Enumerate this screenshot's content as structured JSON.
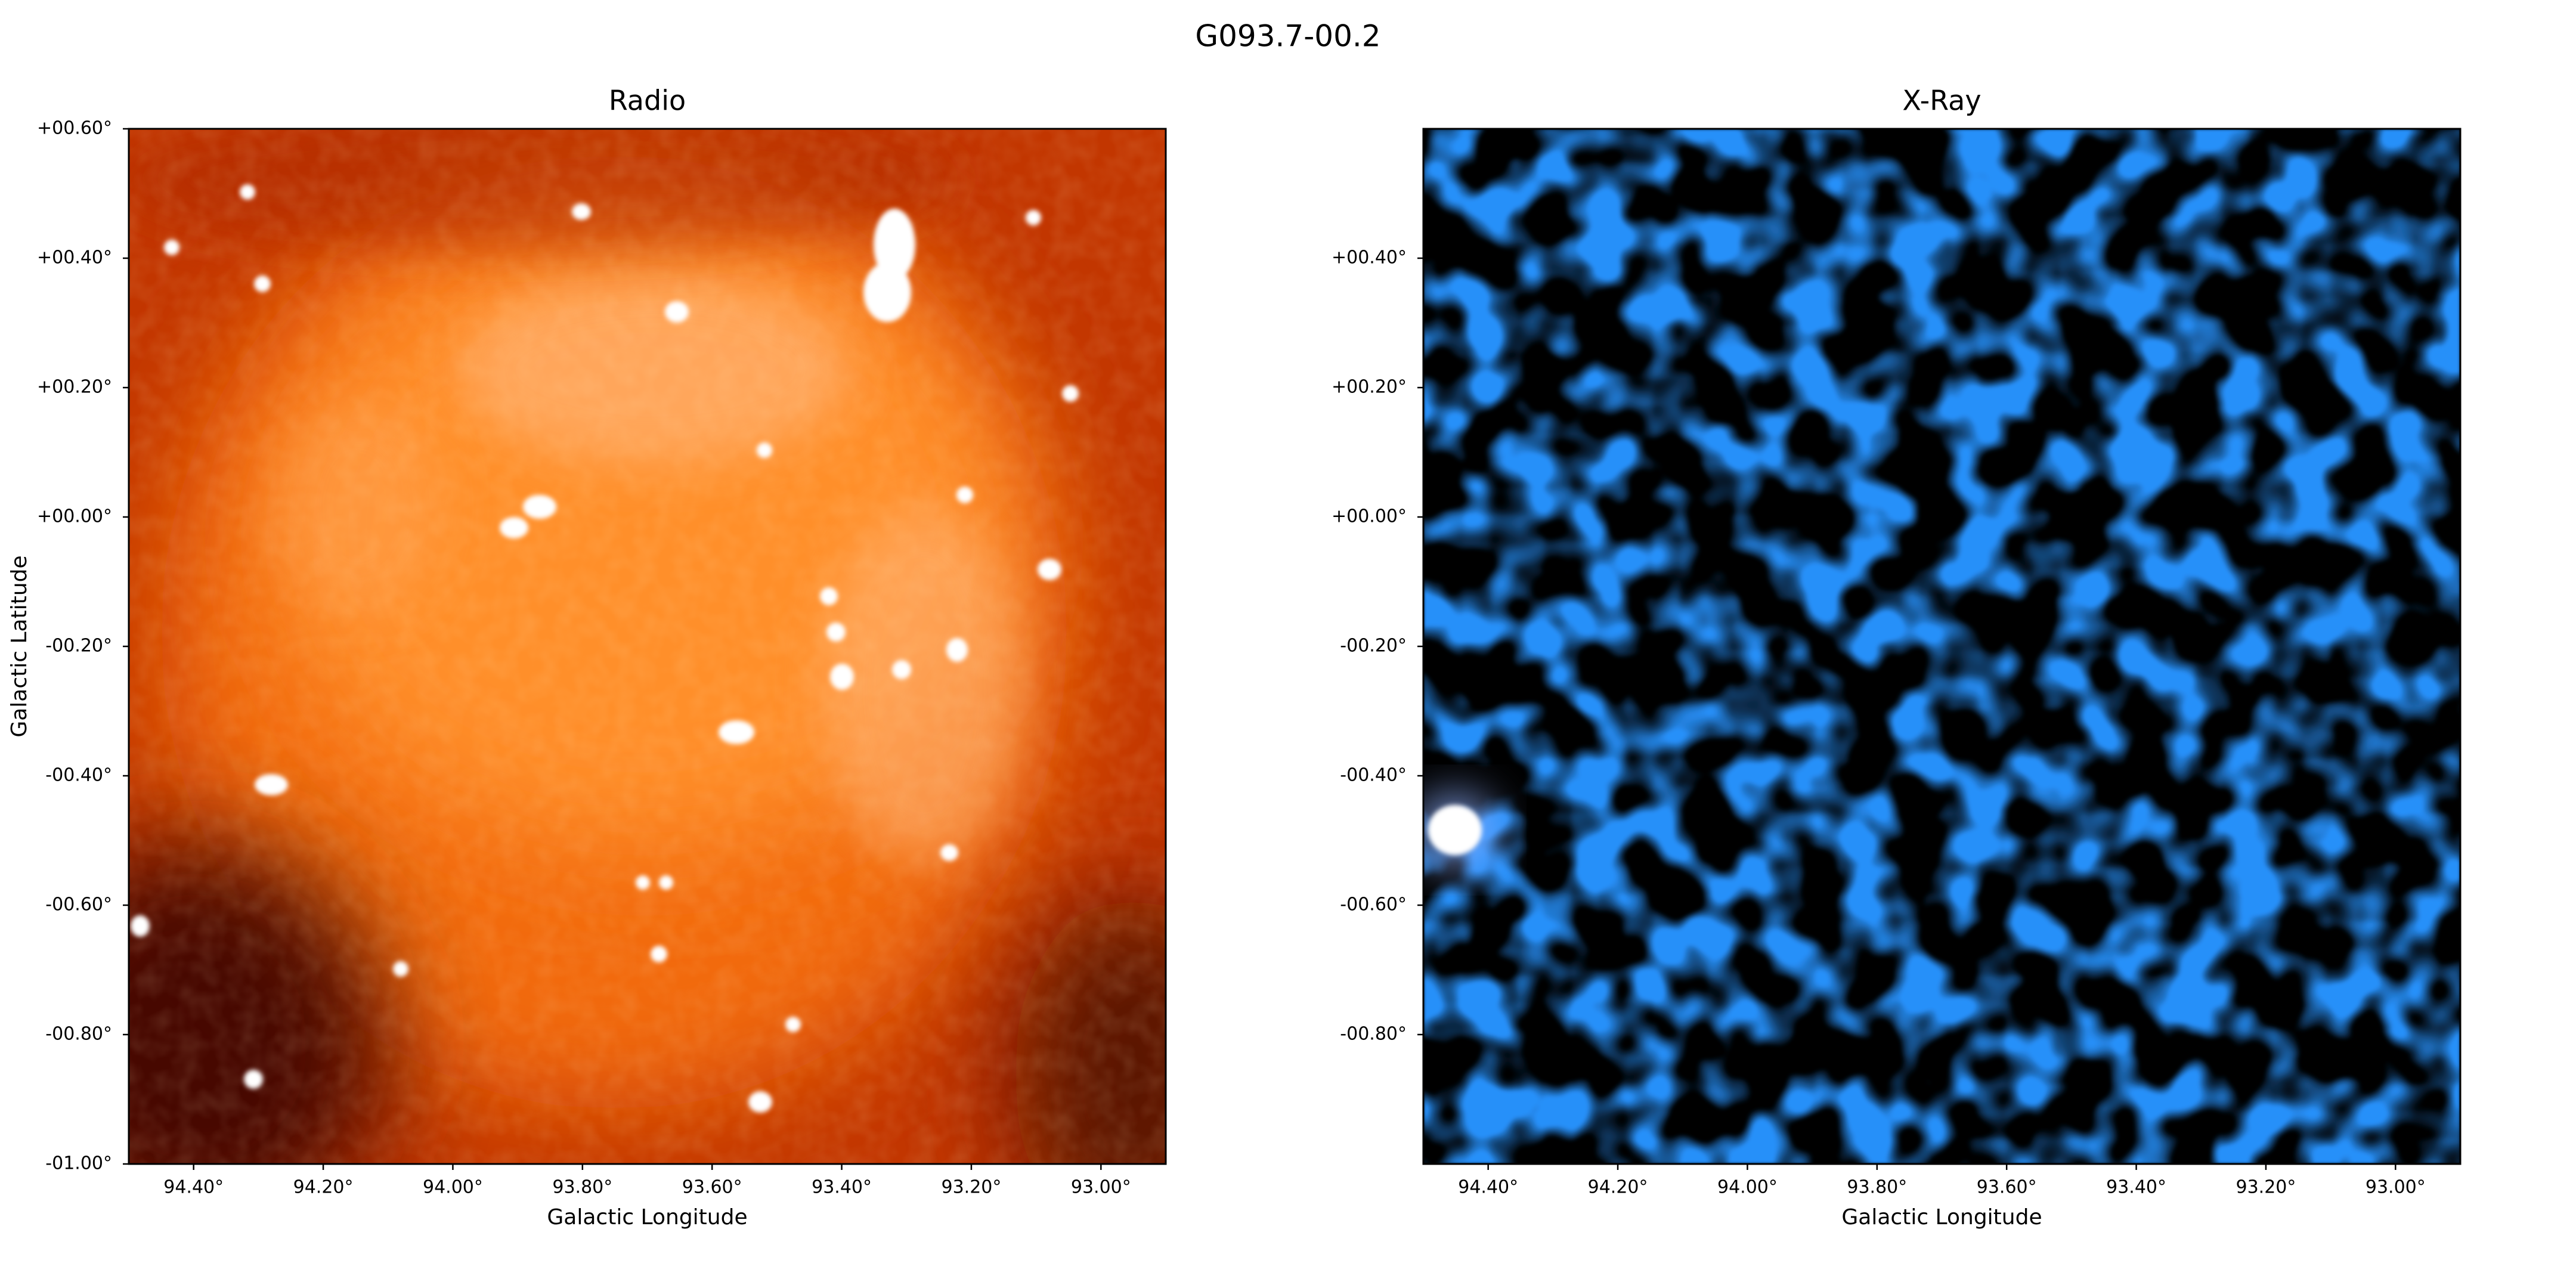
{
  "title": "G093.7-00.2",
  "chart_data": [
    {
      "type": "image",
      "title": "Radio",
      "xlabel": "Galactic Longitude",
      "ylabel": "Galactic Latitude",
      "xlim": [
        94.5,
        92.9
      ],
      "ylim": [
        -1.0,
        0.6
      ],
      "xticks": [
        {
          "value": 94.4,
          "label": "94.40°"
        },
        {
          "value": 94.2,
          "label": "94.20°"
        },
        {
          "value": 94.0,
          "label": "94.00°"
        },
        {
          "value": 93.8,
          "label": "93.80°"
        },
        {
          "value": 93.6,
          "label": "93.60°"
        },
        {
          "value": 93.4,
          "label": "93.40°"
        },
        {
          "value": 93.2,
          "label": "93.20°"
        },
        {
          "value": 93.0,
          "label": "93.00°"
        }
      ],
      "yticks": [
        {
          "value": 0.6,
          "label": "+00.60°"
        },
        {
          "value": 0.4,
          "label": "+00.40°"
        },
        {
          "value": 0.2,
          "label": "+00.20°"
        },
        {
          "value": 0.0,
          "label": "+00.00°"
        },
        {
          "value": -0.2,
          "label": "-00.20°"
        },
        {
          "value": -0.4,
          "label": "-00.40°"
        },
        {
          "value": -0.6,
          "label": "-00.60°"
        },
        {
          "value": -0.8,
          "label": "-00.80°"
        },
        {
          "value": -1.0,
          "label": "-01.00°"
        }
      ]
    },
    {
      "type": "image",
      "title": "X-Ray",
      "xlabel": "Galactic Longitude",
      "xlim": [
        94.5,
        92.9
      ],
      "ylim": [
        -1.0,
        0.6
      ],
      "xticks": [
        {
          "value": 94.4,
          "label": "94.40°"
        },
        {
          "value": 94.2,
          "label": "94.20°"
        },
        {
          "value": 94.0,
          "label": "94.00°"
        },
        {
          "value": 93.8,
          "label": "93.80°"
        },
        {
          "value": 93.6,
          "label": "93.60°"
        },
        {
          "value": 93.4,
          "label": "93.40°"
        },
        {
          "value": 93.2,
          "label": "93.20°"
        },
        {
          "value": 93.0,
          "label": "93.00°"
        }
      ],
      "yticks": [
        {
          "value": 0.4,
          "label": "+00.40°"
        },
        {
          "value": 0.2,
          "label": "+00.20°"
        },
        {
          "value": 0.0,
          "label": "+00.00°"
        },
        {
          "value": -0.2,
          "label": "-00.20°"
        },
        {
          "value": -0.4,
          "label": "-00.40°"
        },
        {
          "value": -0.6,
          "label": "-00.60°"
        },
        {
          "value": -0.8,
          "label": "-00.80°"
        }
      ]
    }
  ]
}
